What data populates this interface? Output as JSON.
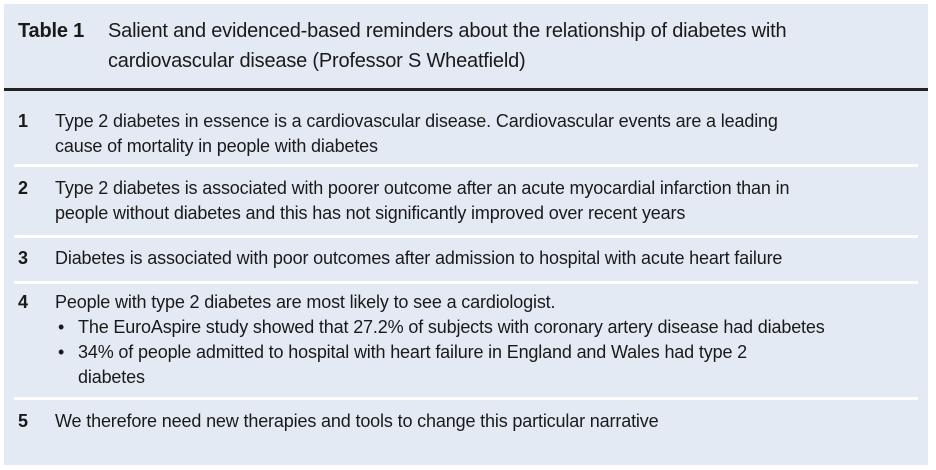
{
  "table": {
    "label": "Table 1",
    "caption_lines": [
      "Salient and evidenced-based reminders about the relationship of diabetes with",
      "cardiovascular disease (Professor S Wheatfield)"
    ],
    "rows": [
      {
        "num": "1",
        "lines": [
          "Type 2 diabetes in essence is a cardiovascular disease. Cardiovascular events are a leading",
          "cause of mortality in people with diabetes"
        ]
      },
      {
        "num": "2",
        "lines": [
          "Type 2 diabetes is associated with poorer outcome after an acute myocardial infarction than in",
          "people without diabetes and this has not significantly improved over recent years"
        ]
      },
      {
        "num": "3",
        "lines": [
          "Diabetes is associated with poor outcomes after admission to hospital with acute heart failure"
        ]
      },
      {
        "num": "4",
        "lines": [
          "People with type 2 diabetes are most likely to see a cardiologist."
        ],
        "bullets": [
          {
            "symbol": "•",
            "lines": [
              "The EuroAspire study showed that 27.2% of subjects with coronary artery disease had diabetes"
            ]
          },
          {
            "symbol": "•",
            "lines": [
              "34% of people admitted to hospital with heart failure in England and Wales had type 2",
              "diabetes"
            ]
          }
        ]
      },
      {
        "num": "5",
        "lines": [
          "We therefore need new therapies and tools to change this particular narrative"
        ]
      }
    ]
  },
  "colors": {
    "background": "#e4eaf4",
    "rule": "#222222",
    "separator": "#ffffff"
  }
}
